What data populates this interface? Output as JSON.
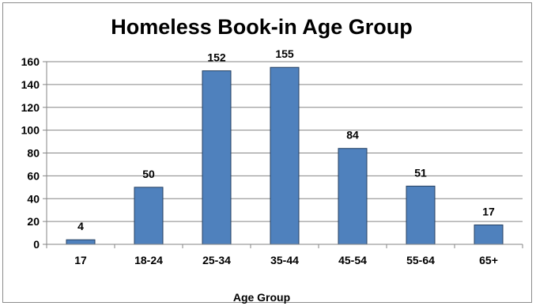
{
  "chart_data": {
    "type": "bar",
    "title": "Homeless Book-in Age Group",
    "xlabel": "Age Group",
    "ylabel": "",
    "categories": [
      "17",
      "18-24",
      "25-34",
      "35-44",
      "45-54",
      "55-64",
      "65+"
    ],
    "values": [
      4,
      50,
      152,
      155,
      84,
      51,
      17
    ],
    "ylim": [
      0,
      160
    ],
    "yticks": [
      0,
      20,
      40,
      60,
      80,
      100,
      120,
      140,
      160
    ],
    "grid": true,
    "legend": "none",
    "bar_color": "#4f81bd",
    "bar_edge_color": "#243f60",
    "gridline_color": "#868686"
  }
}
